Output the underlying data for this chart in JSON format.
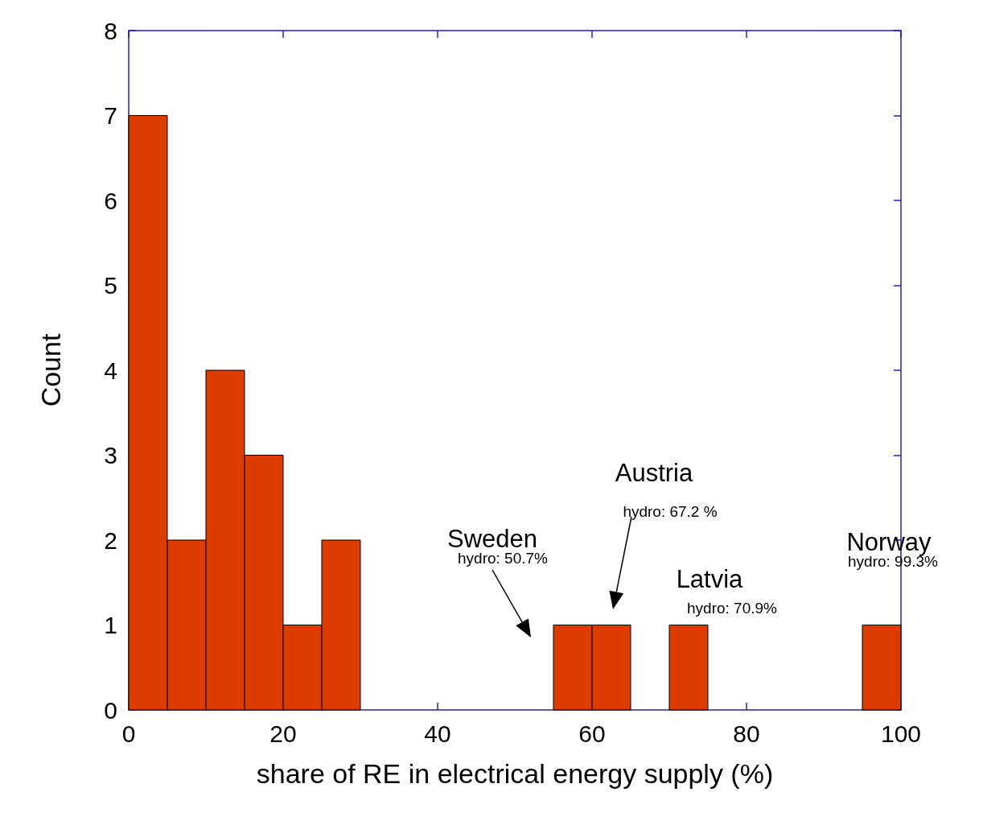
{
  "chart_data": {
    "type": "histogram",
    "xlabel": "share of RE in electrical energy supply (%)",
    "ylabel": "Count",
    "bins": [
      0,
      5,
      10,
      15,
      20,
      25,
      30,
      35,
      40,
      45,
      50,
      55,
      60,
      65,
      70,
      75,
      80,
      85,
      90,
      95,
      100
    ],
    "values": [
      7,
      2,
      4,
      3,
      1,
      2,
      0,
      0,
      0,
      0,
      0,
      1,
      1,
      0,
      1,
      0,
      0,
      0,
      0,
      1
    ],
    "color": "#dd3c00",
    "xlim": [
      0,
      100
    ],
    "xticks": [
      0,
      20,
      40,
      60,
      80,
      100
    ],
    "ylim": [
      0,
      8
    ],
    "yticks": [
      0,
      1,
      2,
      3,
      4,
      5,
      6,
      7,
      8
    ],
    "grid": false,
    "annotations": [
      "Sweden",
      "hydro: 50.7%",
      "Austria",
      "hydro: 67.2 %",
      "Latvia",
      "hydro: 70.9%",
      "Norway",
      "hydro: 99.3%"
    ]
  }
}
